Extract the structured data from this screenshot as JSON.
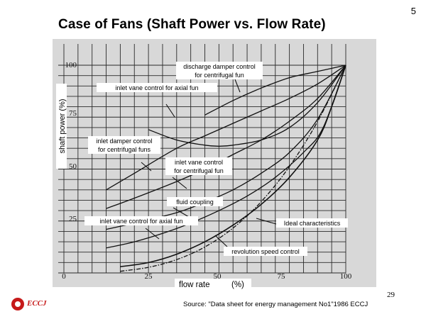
{
  "slide": {
    "number": "5",
    "title": "Case of Fans (Shaft Power vs. Flow Rate)",
    "page_footer": "29",
    "source": "Source: \"Data sheet for energy management No1\"1986 ECCJ",
    "logo_text": "ECCJ",
    "colors": {
      "logo": "#c61a1a",
      "plot_background": "#d8d8d8",
      "grid": "#2a2a2a"
    }
  },
  "chart_data": {
    "type": "line",
    "xlabel": "flow rate",
    "xlabel_unit": "(%)",
    "ylabel": "shaft power (%)",
    "xlim": [
      0,
      100
    ],
    "ylim": [
      0,
      100
    ],
    "x_ticks": [
      "0",
      "25",
      "50",
      "75",
      "100"
    ],
    "y_ticks": [
      "25",
      "50",
      "75",
      "100"
    ],
    "grid": true,
    "legend": "none",
    "series": [
      {
        "key": "discharge_damper",
        "name": "discharge damper control for centrifugal fun",
        "label_lines": [
          "discharge damper control",
          "for centrifugal fun"
        ],
        "x": [
          50,
          60,
          70,
          80,
          90,
          100
        ],
        "y": [
          76,
          83,
          89,
          94,
          97,
          100
        ]
      },
      {
        "key": "inlet_vane_axial_upper",
        "name": "inlet vane control for axial fun",
        "label_lines": [
          "inlet vane control for axial fun"
        ],
        "x": [
          30,
          40,
          50,
          55,
          60,
          70,
          80,
          90,
          100
        ],
        "y": [
          69,
          64,
          61.5,
          61,
          61.5,
          64,
          70,
          82,
          100
        ]
      },
      {
        "key": "inlet_damper_centrifugal",
        "name": "inlet damper control for centrifugal funs",
        "label_lines": [
          "inlet damper control",
          "for centrifugal funs"
        ],
        "x": [
          15,
          25,
          40,
          50,
          60,
          70,
          80,
          90,
          100
        ],
        "y": [
          40,
          48,
          60,
          66,
          72,
          78,
          84,
          91,
          100
        ]
      },
      {
        "key": "inlet_vane_centrifugal",
        "name": "inlet vane control for centrifugal fun",
        "label_lines": [
          "inlet vane control",
          "for centrifugal fun"
        ],
        "x": [
          15,
          25,
          40,
          50,
          60,
          70,
          80,
          90,
          100
        ],
        "y": [
          31,
          36,
          44,
          50,
          57,
          64,
          73,
          84,
          100
        ]
      },
      {
        "key": "fluid_coupling",
        "name": "fluid coupling",
        "label_lines": [
          "fluid coupling"
        ],
        "x": [
          15,
          25,
          40,
          50,
          60,
          70,
          80,
          90,
          100
        ],
        "y": [
          21,
          24,
          29,
          34,
          40,
          48,
          58,
          74,
          100
        ]
      },
      {
        "key": "inlet_vane_axial_lower",
        "name": "inlet vane control for axial fun",
        "label_lines": [
          "inlet vane control for axial fun"
        ],
        "x": [
          15,
          25,
          35,
          45,
          55,
          65,
          75,
          85,
          92,
          100
        ],
        "y": [
          12,
          15,
          19,
          24,
          30,
          37,
          46,
          58,
          70,
          100
        ]
      },
      {
        "key": "revolution_speed",
        "name": "revolution speed control",
        "label_lines": [
          "revolution speed control"
        ],
        "x": [
          20,
          30,
          40,
          50,
          60,
          70,
          80,
          90,
          95,
          100
        ],
        "y": [
          3,
          5,
          9,
          15,
          23,
          33,
          46,
          64,
          80,
          100
        ]
      },
      {
        "key": "ideal",
        "name": "Ideal characteristics",
        "label_lines": [
          "Ideal characteristics"
        ],
        "dashed": true,
        "x": [
          20,
          30,
          40,
          50,
          60,
          70,
          80,
          90,
          100
        ],
        "y": [
          0.8,
          2.7,
          6.4,
          12.5,
          21.6,
          34.3,
          51.2,
          72.9,
          100
        ]
      }
    ]
  }
}
